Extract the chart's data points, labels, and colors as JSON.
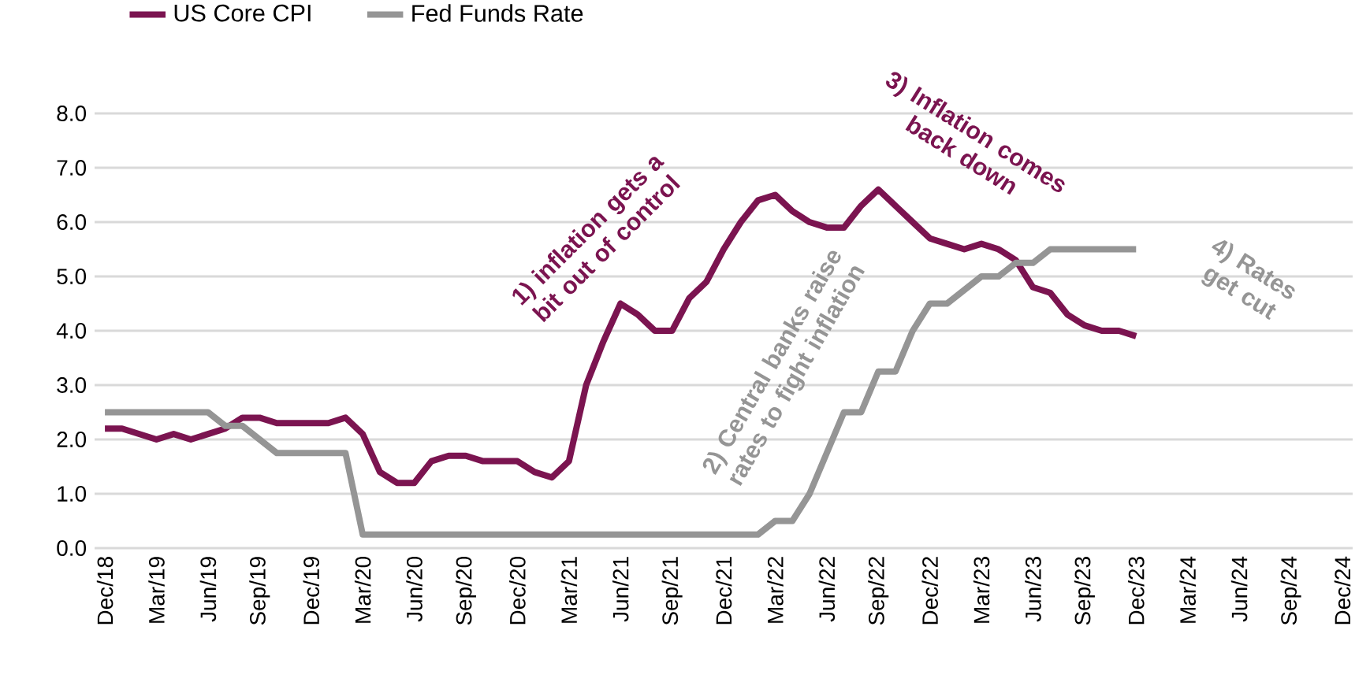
{
  "chart_data": {
    "type": "line",
    "categories": [
      "Dec/18",
      null,
      null,
      "Mar/19",
      null,
      null,
      "Jun/19",
      null,
      null,
      "Sep/19",
      null,
      null,
      "Dec/19",
      null,
      null,
      "Mar/20",
      null,
      null,
      "Jun/20",
      null,
      null,
      "Sep/20",
      null,
      null,
      "Dec/20",
      null,
      null,
      "Mar/21",
      null,
      null,
      "Jun/21",
      null,
      null,
      "Sep/21",
      null,
      null,
      "Dec/21",
      null,
      null,
      "Mar/22",
      null,
      null,
      "Jun/22",
      null,
      null,
      "Sep/22",
      null,
      null,
      "Dec/22",
      null,
      null,
      "Mar/23",
      null,
      null,
      "Jun/23",
      null,
      null,
      "Sep/23",
      null,
      null,
      "Dec/23",
      null,
      null,
      "Mar/24",
      null,
      null,
      "Jun/24",
      null,
      null,
      "Sep/24",
      null,
      null,
      "Dec/24"
    ],
    "series": [
      {
        "name": "US Core CPI",
        "color": "#7b1450",
        "values": [
          2.2,
          2.2,
          2.1,
          2.0,
          2.1,
          2.0,
          2.1,
          2.2,
          2.4,
          2.4,
          2.3,
          2.3,
          2.3,
          2.3,
          2.4,
          2.1,
          1.4,
          1.2,
          1.2,
          1.6,
          1.7,
          1.7,
          1.6,
          1.6,
          1.6,
          1.4,
          1.3,
          1.6,
          3.0,
          3.8,
          4.5,
          4.3,
          4.0,
          4.0,
          4.6,
          4.9,
          5.5,
          6.0,
          6.4,
          6.5,
          6.2,
          6.0,
          5.9,
          5.9,
          6.3,
          6.6,
          6.3,
          6.0,
          5.7,
          5.6,
          5.5,
          5.6,
          5.5,
          5.3,
          4.8,
          4.7,
          4.3,
          4.1,
          4.0,
          4.0,
          3.9,
          null,
          null,
          null,
          null,
          null,
          null,
          null,
          null,
          null,
          null,
          null,
          null
        ]
      },
      {
        "name": "Fed Funds Rate",
        "color": "#959595",
        "values": [
          2.5,
          2.5,
          2.5,
          2.5,
          2.5,
          2.5,
          2.5,
          2.25,
          2.25,
          2.0,
          1.75,
          1.75,
          1.75,
          1.75,
          1.75,
          0.25,
          0.25,
          0.25,
          0.25,
          0.25,
          0.25,
          0.25,
          0.25,
          0.25,
          0.25,
          0.25,
          0.25,
          0.25,
          0.25,
          0.25,
          0.25,
          0.25,
          0.25,
          0.25,
          0.25,
          0.25,
          0.25,
          0.25,
          0.25,
          0.5,
          0.5,
          1.0,
          1.75,
          2.5,
          2.5,
          3.25,
          3.25,
          4.0,
          4.5,
          4.5,
          4.75,
          5.0,
          5.0,
          5.25,
          5.25,
          5.5,
          5.5,
          5.5,
          5.5,
          5.5,
          5.5,
          null,
          null,
          null,
          null,
          null,
          null,
          null,
          null,
          null,
          null,
          null,
          null
        ]
      }
    ],
    "ylim": [
      0,
      8
    ],
    "yticks": [
      {
        "value": 0,
        "label": "0.0"
      },
      {
        "value": 1,
        "label": "1.0"
      },
      {
        "value": 2,
        "label": "2.0"
      },
      {
        "value": 3,
        "label": "3.0"
      },
      {
        "value": 4,
        "label": "4.0"
      },
      {
        "value": 5,
        "label": "5.0"
      },
      {
        "value": 6,
        "label": "6.0"
      },
      {
        "value": 7,
        "label": "7.0"
      },
      {
        "value": 8,
        "label": "8.0"
      }
    ],
    "grid": "y",
    "legend": "top",
    "marker": "none",
    "line_style": "solid",
    "annotations": [
      "1) inflation gets a bit out of control",
      "2) Central banks raise rates to fight inflation",
      "3) Inflation comes back down",
      "4) Rates get cut"
    ]
  }
}
